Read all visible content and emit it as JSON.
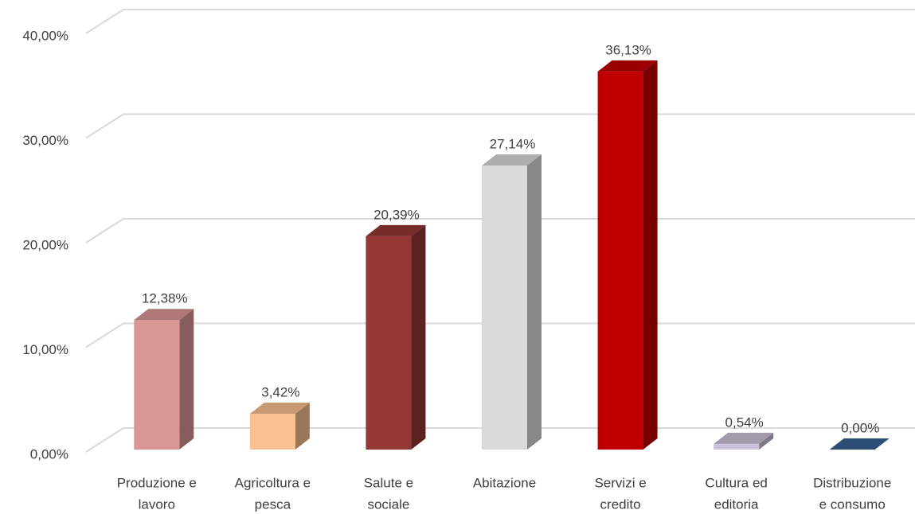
{
  "chart_data": {
    "type": "bar3d",
    "categories": [
      [
        "Produzione e",
        "lavoro"
      ],
      [
        "Agricoltura e",
        "pesca"
      ],
      [
        "Salute e",
        "sociale"
      ],
      [
        "Abitazione"
      ],
      [
        "Servizi e",
        "credito"
      ],
      [
        "Cultura ed",
        "editoria"
      ],
      [
        "Distribuzione",
        "e consumo"
      ]
    ],
    "values": [
      12.38,
      3.42,
      20.39,
      27.14,
      36.13,
      0.54,
      0.0
    ],
    "value_labels": [
      "12,38%",
      "3,42%",
      "20,39%",
      "27,14%",
      "36,13%",
      "0,54%",
      "0,00%"
    ],
    "colors": [
      "#d99694",
      "#fac090",
      "#953735",
      "#d9d9d9",
      "#c00000",
      "#ccc1da",
      "#376092"
    ],
    "ylim": [
      0,
      40
    ],
    "yticks": [
      {
        "value": 0,
        "label": "0,00%"
      },
      {
        "value": 10,
        "label": "10,00%"
      },
      {
        "value": 20,
        "label": "20,00%"
      },
      {
        "value": 30,
        "label": "30,00%"
      },
      {
        "value": 40,
        "label": "40,00%"
      }
    ],
    "grid": true
  }
}
